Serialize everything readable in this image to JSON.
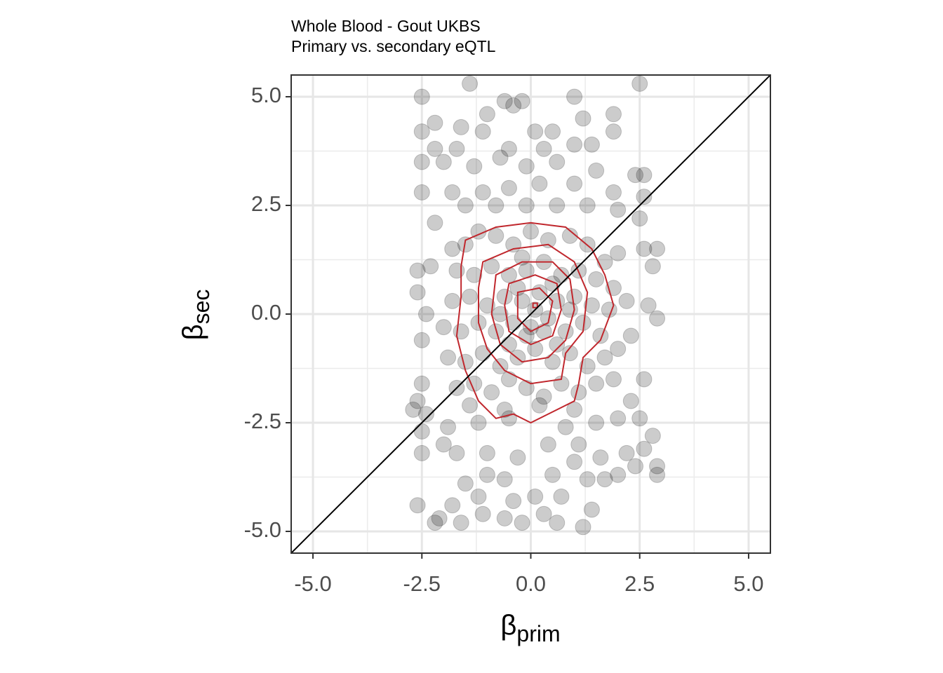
{
  "chart_data": {
    "type": "scatter",
    "title": "Whole Blood - Gout UKBS",
    "subtitle": "Primary vs. secondary eQTL",
    "xlabel": {
      "symbol": "β",
      "subscript": "prim"
    },
    "ylabel": {
      "symbol": "β",
      "subscript": "sec"
    },
    "xlim": [
      -5.5,
      5.5
    ],
    "ylim": [
      -5.5,
      5.5
    ],
    "xticks": [
      {
        "value": -5,
        "label": "-5.0"
      },
      {
        "value": -2.5,
        "label": "-2.5"
      },
      {
        "value": 0,
        "label": "0.0"
      },
      {
        "value": 2.5,
        "label": "2.5"
      },
      {
        "value": 5,
        "label": "5.0"
      }
    ],
    "yticks": [
      {
        "value": -5,
        "label": "-5.0"
      },
      {
        "value": -2.5,
        "label": "-2.5"
      },
      {
        "value": 0,
        "label": "0.0"
      },
      {
        "value": 2.5,
        "label": "2.5"
      },
      {
        "value": 5,
        "label": "5.0"
      }
    ],
    "minor_ticks": [
      -3.75,
      -1.25,
      1.25,
      3.75
    ],
    "grid": true,
    "reference_line": {
      "slope": 1,
      "intercept": 0,
      "color": "#000000"
    },
    "series": [
      {
        "color": "#000000",
        "opacity": 0.2,
        "x": [
          -2.5,
          -1.4,
          -0.6,
          -0.2,
          1.0,
          2.5,
          -2.5,
          -2.2,
          -1.6,
          -1.0,
          -0.4,
          0.1,
          0.5,
          1.2,
          1.9,
          1.9,
          -2.2,
          -1.7,
          -1.1,
          -0.5,
          0.3,
          1.0,
          1.4,
          -2.5,
          -2.0,
          -1.3,
          -0.7,
          -0.1,
          0.6,
          1.5,
          2.4,
          2.6,
          -2.5,
          -1.8,
          -1.1,
          -0.5,
          0.2,
          1.0,
          1.9,
          2.6,
          -2.2,
          -1.5,
          -0.8,
          -0.1,
          0.6,
          1.3,
          2.0,
          2.5,
          -2.6,
          -2.3,
          -1.8,
          2.6,
          2.8,
          2.9,
          -2.6,
          -2.4,
          -2.5,
          2.7,
          2.9,
          2.3,
          -2.5,
          -2.6,
          -2.4,
          -2.7,
          2.6,
          2.3,
          2.5,
          -2.5,
          -2.5,
          -2.0,
          2.8,
          2.6,
          2.9,
          2.9,
          2.4,
          2.0,
          -2.6,
          -2.2,
          -2.1,
          -1.6,
          -1.1,
          -0.6,
          -0.2,
          0.3,
          0.6,
          1.2,
          1.4,
          -1.8,
          -1.2,
          -0.4,
          0.1,
          0.7,
          1.3,
          1.7,
          -1.5,
          -1.0,
          -0.6,
          0.5,
          1.0,
          1.6,
          2.2,
          -1.7,
          -1.0,
          -0.3,
          0.4,
          1.1,
          -1.9,
          -1.2,
          -0.5,
          0.8,
          1.5,
          2.0,
          -1.5,
          -1.2,
          -0.8,
          -0.4,
          0.0,
          0.4,
          0.9,
          1.3,
          1.7,
          2.0,
          -1.7,
          -1.3,
          -0.9,
          -0.5,
          -0.1,
          0.3,
          0.7,
          1.1,
          1.5,
          1.9,
          -1.8,
          -1.4,
          -1.0,
          -0.6,
          -0.2,
          0.2,
          0.6,
          1.0,
          1.4,
          1.8,
          2.2,
          -2.0,
          -1.6,
          -1.2,
          -0.8,
          -0.4,
          0.0,
          0.4,
          0.8,
          1.2,
          1.6,
          2.0,
          -1.9,
          -1.5,
          -1.1,
          -0.7,
          -0.3,
          0.1,
          0.5,
          0.9,
          1.3,
          1.7,
          -1.7,
          -1.3,
          -0.9,
          -0.5,
          -0.1,
          0.3,
          0.7,
          1.1,
          1.5,
          1.9,
          -1.4,
          -0.6,
          0.2,
          1.0,
          -0.3,
          0.1,
          -0.1,
          0.5,
          -0.5,
          0.3,
          -0.2,
          0.6,
          -0.7,
          0.9
        ],
        "y": [
          5.0,
          5.3,
          4.9,
          4.9,
          5.0,
          5.3,
          4.2,
          4.4,
          4.3,
          4.6,
          4.8,
          4.2,
          4.2,
          4.5,
          4.6,
          4.2,
          3.8,
          3.8,
          4.2,
          3.8,
          3.8,
          3.9,
          3.9,
          3.5,
          3.5,
          3.4,
          3.6,
          3.4,
          3.5,
          3.3,
          3.2,
          3.2,
          2.8,
          2.8,
          2.8,
          2.9,
          3.0,
          3.0,
          2.8,
          2.7,
          2.1,
          2.5,
          2.5,
          2.5,
          2.5,
          2.5,
          2.4,
          2.2,
          1.0,
          1.1,
          1.5,
          1.5,
          1.1,
          1.5,
          0.5,
          0.0,
          -0.6,
          0.2,
          -0.1,
          -0.5,
          -1.6,
          -2.0,
          -2.3,
          -2.2,
          -1.5,
          -2.0,
          -2.4,
          -3.2,
          -2.7,
          -3.0,
          -2.8,
          -3.1,
          -3.5,
          -3.7,
          -3.5,
          -3.7,
          -4.4,
          -4.8,
          -4.7,
          -4.8,
          -4.6,
          -4.7,
          -4.8,
          -4.6,
          -4.8,
          -4.9,
          -4.5,
          -4.4,
          -4.2,
          -4.3,
          -4.2,
          -4.2,
          -3.8,
          -3.8,
          -3.9,
          -3.7,
          -3.8,
          -3.7,
          -3.4,
          -3.3,
          -3.2,
          -3.2,
          -3.2,
          -3.3,
          -3.0,
          -3.0,
          -2.6,
          -2.5,
          -2.4,
          -2.6,
          -2.5,
          -2.4,
          1.6,
          1.9,
          1.8,
          1.6,
          1.9,
          1.7,
          1.8,
          1.6,
          1.2,
          1.4,
          1.0,
          0.9,
          1.1,
          0.9,
          1.0,
          1.2,
          0.9,
          1.0,
          0.8,
          0.6,
          0.3,
          0.4,
          0.2,
          0.4,
          0.3,
          0.5,
          0.3,
          0.4,
          0.2,
          0.1,
          0.3,
          -0.3,
          -0.4,
          -0.2,
          -0.4,
          -0.2,
          -0.3,
          -0.1,
          -0.4,
          -0.2,
          -0.5,
          -0.8,
          -1.0,
          -1.1,
          -0.9,
          -1.2,
          -1.0,
          -0.8,
          -1.1,
          -0.9,
          -1.2,
          -1.0,
          -1.7,
          -1.6,
          -1.8,
          -1.5,
          -1.7,
          -1.9,
          -1.6,
          -1.8,
          -1.6,
          -1.5,
          -2.1,
          -2.2,
          -2.1,
          -2.2,
          0.6,
          0.1,
          -0.5,
          0.7,
          -0.7,
          -0.4,
          1.3,
          -0.7,
          0.0,
          0.1
        ]
      }
    ],
    "contours": {
      "color": "#c0272d",
      "paths": [
        {
          "x": [
            -1.5,
            -0.8,
            0.0,
            0.8,
            1.4,
            1.7,
            1.9,
            1.6,
            1.2,
            1.1,
            1.0,
            0.4,
            0.0,
            -0.4,
            -0.8,
            -1.2,
            -1.5,
            -1.7,
            -1.6,
            -1.6
          ],
          "y": [
            1.7,
            2.0,
            2.1,
            2.0,
            1.5,
            0.9,
            0.2,
            -0.6,
            -1.0,
            -1.6,
            -2.0,
            -2.3,
            -2.5,
            -2.3,
            -2.4,
            -2.0,
            -1.3,
            -0.5,
            0.4,
            1.1
          ]
        },
        {
          "x": [
            -1.1,
            -0.4,
            0.4,
            1.0,
            1.3,
            1.2,
            0.8,
            0.7,
            0.0,
            -0.6,
            -1.0,
            -1.2,
            -1.2
          ],
          "y": [
            1.2,
            1.5,
            1.6,
            1.2,
            0.5,
            -0.4,
            -0.9,
            -1.5,
            -1.6,
            -1.3,
            -0.8,
            -0.2,
            0.6
          ]
        },
        {
          "x": [
            -0.8,
            -0.2,
            0.5,
            0.9,
            1.0,
            0.8,
            0.4,
            -0.2,
            -0.7,
            -0.9
          ],
          "y": [
            0.9,
            1.2,
            1.2,
            0.8,
            0.1,
            -0.6,
            -1.0,
            -1.1,
            -0.7,
            0.0
          ]
        },
        {
          "x": [
            -0.5,
            0.1,
            0.6,
            0.7,
            0.5,
            0.0,
            -0.5,
            -0.6
          ],
          "y": [
            0.7,
            0.9,
            0.7,
            0.1,
            -0.5,
            -0.7,
            -0.4,
            0.2
          ]
        },
        {
          "x": [
            -0.3,
            0.2,
            0.5,
            0.4,
            0.0,
            -0.3
          ],
          "y": [
            0.5,
            0.6,
            0.3,
            -0.2,
            -0.4,
            -0.1
          ]
        },
        {
          "x": [
            0.05,
            0.15,
            0.15,
            0.05
          ],
          "y": [
            0.25,
            0.25,
            0.15,
            0.15
          ]
        }
      ]
    }
  }
}
